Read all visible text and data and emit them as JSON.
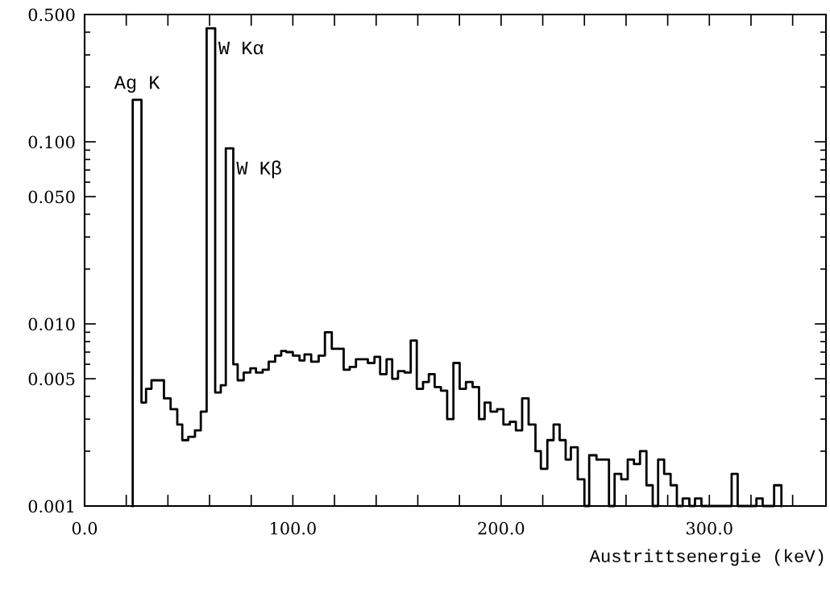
{
  "chart_data": {
    "type": "histogram",
    "xlabel": "Austrittsenergie (keV)",
    "bins": [
      23.1,
      27.3,
      29.5,
      32.1,
      38.1,
      41.3,
      44.5,
      46.9,
      49.8,
      53.0,
      55.8,
      58.6,
      62.7,
      65.4,
      67.8,
      71.4,
      73.5,
      76.4,
      79.6,
      82.3,
      85.5,
      88.4,
      91.5,
      94.4,
      96.8,
      100.0,
      103.2,
      105.6,
      108.8,
      112.4,
      115.4,
      118.7,
      124.4,
      127.3,
      130.3,
      136.0,
      139.2,
      141.9,
      145.0,
      147.7,
      150.5,
      153.7,
      156.6,
      159.5,
      162.5,
      165.3,
      168.1,
      171.1,
      174.1,
      177.1,
      180.1,
      183.1,
      186.3,
      189.4,
      192.1,
      194.9,
      198.1,
      201.1,
      204.2,
      207.1,
      210.1,
      213.2,
      216.5,
      219.1,
      222.2,
      225.2,
      228.1,
      231.0,
      233.5,
      236.8,
      240.0,
      242.3,
      245.8,
      249.0,
      251.8,
      254.5,
      257.7,
      260.8,
      263.8,
      266.7,
      269.8,
      272.8,
      275.4,
      278.3,
      281.4,
      284.4,
      287.2,
      290.4,
      293.1,
      296.2,
      310.7,
      313.6,
      322.6,
      325.6,
      331.1,
      334.6
    ],
    "values": [
      0.17,
      0.0037,
      0.0044,
      0.0049,
      0.0039,
      0.0034,
      0.0028,
      0.0023,
      0.0024,
      0.0026,
      0.0033,
      0.42,
      0.0042,
      0.0046,
      0.092,
      0.006,
      0.0049,
      0.0054,
      0.0057,
      0.0054,
      0.0056,
      0.0062,
      0.0067,
      0.0071,
      0.007,
      0.0067,
      0.0063,
      0.0068,
      0.0062,
      0.0067,
      0.009,
      0.0073,
      0.0056,
      0.0058,
      0.0064,
      0.0061,
      0.0066,
      0.0053,
      0.0064,
      0.005,
      0.0055,
      0.0054,
      0.0081,
      0.0044,
      0.0048,
      0.0053,
      0.0045,
      0.0043,
      0.003,
      0.0061,
      0.0044,
      0.0048,
      0.0045,
      0.003,
      0.0037,
      0.0033,
      0.0034,
      0.0028,
      0.0029,
      0.0026,
      0.0039,
      0.0028,
      0.002,
      0.0016,
      0.0023,
      0.0028,
      0.0023,
      0.0018,
      0.0021,
      0.0014,
      null,
      0.0019,
      0.0018,
      0.0018,
      null,
      0.0015,
      0.0014,
      0.0018,
      0.0017,
      0.002,
      0.0013,
      null,
      0.0018,
      0.0015,
      0.0013,
      null,
      0.0011,
      null,
      0.0011,
      null,
      0.0015,
      null,
      0.0011,
      null,
      0.0013
    ],
    "color": "#000000",
    "log": "y",
    "xlim": [
      0,
      356
    ],
    "xticks": [
      {
        "value": 0,
        "label": "0.0"
      },
      {
        "value": 20,
        "label": null
      },
      {
        "value": 40,
        "label": null
      },
      {
        "value": 60,
        "label": null
      },
      {
        "value": 80,
        "label": null
      },
      {
        "value": 100,
        "label": "100.0"
      },
      {
        "value": 120,
        "label": null
      },
      {
        "value": 140,
        "label": null
      },
      {
        "value": 160,
        "label": null
      },
      {
        "value": 180,
        "label": null
      },
      {
        "value": 200,
        "label": "200.0"
      },
      {
        "value": 220,
        "label": null
      },
      {
        "value": 240,
        "label": null
      },
      {
        "value": 260,
        "label": null
      },
      {
        "value": 280,
        "label": null
      },
      {
        "value": 300,
        "label": "300.0"
      },
      {
        "value": 320,
        "label": null
      },
      {
        "value": 340,
        "label": null
      }
    ],
    "ylim": [
      0.001,
      0.5
    ],
    "yticks": [
      {
        "value": 0.001,
        "label": "0.001"
      },
      {
        "value": 0.005,
        "label": "0.005"
      },
      {
        "value": 0.01,
        "label": "0.010"
      },
      {
        "value": 0.05,
        "label": "0.050"
      },
      {
        "value": 0.1,
        "label": "0.100"
      },
      {
        "value": 0.5,
        "label": "0.500"
      }
    ],
    "grid": false,
    "annotations": [
      "Ag K",
      "W Kα",
      "W Kβ"
    ]
  }
}
